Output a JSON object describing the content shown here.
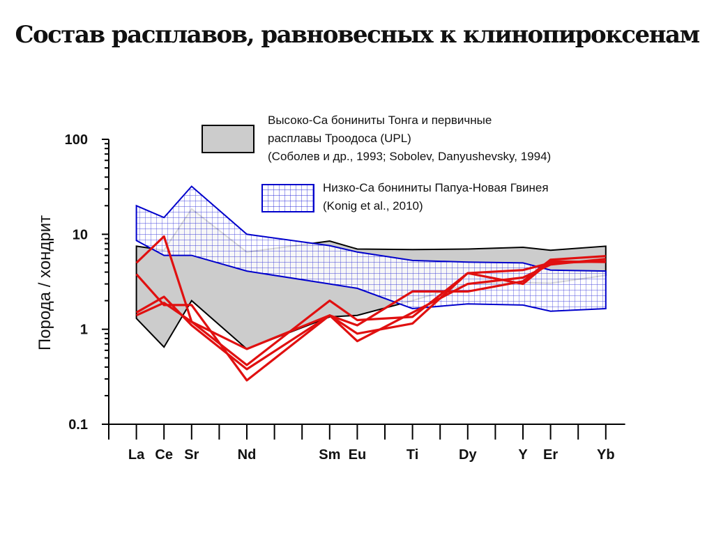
{
  "slide": {
    "title": "Состав расплавов, равновесных к клинопироксенам"
  },
  "chart_data": {
    "type": "line",
    "yscale": "log",
    "ylabel": "Порода / хондрит",
    "ylim": [
      0.1,
      100
    ],
    "yticks": [
      {
        "value": 0.1,
        "label": "0.1"
      },
      {
        "value": 1,
        "label": "1"
      },
      {
        "value": 10,
        "label": "10"
      },
      {
        "value": 100,
        "label": "100"
      }
    ],
    "x_positions_count": 19,
    "categories": [
      {
        "label": "La",
        "pos": 1
      },
      {
        "label": "Ce",
        "pos": 2
      },
      {
        "label": "Sr",
        "pos": 3
      },
      {
        "label": "Nd",
        "pos": 5
      },
      {
        "label": "Sm",
        "pos": 8
      },
      {
        "label": "Eu",
        "pos": 9
      },
      {
        "label": "Ti",
        "pos": 11
      },
      {
        "label": "Dy",
        "pos": 13
      },
      {
        "label": "Y",
        "pos": 15
      },
      {
        "label": "Er",
        "pos": 16
      },
      {
        "label": "Yb",
        "pos": 18
      }
    ],
    "legend": [
      {
        "text_lines": [
          "Высоко-Ca бониниты Тонга и первичные",
          "расплавы Троодоса (UPL)",
          "(Соболев и др., 1993; Sobolev, Danyushevsky, 1994)"
        ],
        "fill": "#cccccc",
        "stroke": "#000000"
      },
      {
        "text_lines": [
          "Низко-Ca бониниты Папуа-Новая Гвинея",
          "(Konig et al., 2010)"
        ],
        "fill": "hatched",
        "stroke": "#0000cc"
      }
    ],
    "bands": [
      {
        "name": "high_ca",
        "fill": "#cccccc",
        "stroke": "#000000",
        "upper": [
          [
            1,
            7.5
          ],
          [
            2,
            6.8
          ],
          [
            3,
            18.5
          ],
          [
            5,
            6.5
          ],
          [
            8,
            8.5
          ],
          [
            9,
            7.0
          ],
          [
            11,
            6.9
          ],
          [
            13,
            7.0
          ],
          [
            15,
            7.3
          ],
          [
            16,
            6.8
          ],
          [
            18,
            7.5
          ]
        ],
        "lower": [
          [
            1,
            1.3
          ],
          [
            2,
            0.65
          ],
          [
            3,
            2.0
          ],
          [
            5,
            0.62
          ],
          [
            8,
            1.35
          ],
          [
            9,
            1.4
          ],
          [
            11,
            2.0
          ],
          [
            13,
            3.0
          ],
          [
            15,
            3.1
          ],
          [
            16,
            3.05
          ],
          [
            18,
            3.7
          ]
        ]
      },
      {
        "name": "low_ca",
        "fill": "hatched",
        "stroke": "#0000cc",
        "upper": [
          [
            1,
            20
          ],
          [
            2,
            15
          ],
          [
            3,
            32
          ],
          [
            5,
            10
          ],
          [
            8,
            7.6
          ],
          [
            9,
            6.5
          ],
          [
            11,
            5.3
          ],
          [
            13,
            5.1
          ],
          [
            15,
            5.0
          ],
          [
            16,
            4.2
          ],
          [
            18,
            4.1
          ]
        ],
        "lower": [
          [
            1,
            8.6
          ],
          [
            2,
            6.0
          ],
          [
            3,
            6.0
          ],
          [
            5,
            4.1
          ],
          [
            8,
            3.0
          ],
          [
            9,
            2.7
          ],
          [
            11,
            1.65
          ],
          [
            13,
            1.85
          ],
          [
            15,
            1.8
          ],
          [
            16,
            1.55
          ],
          [
            18,
            1.65
          ]
        ]
      }
    ],
    "series": [
      {
        "color": "#e01010",
        "values": [
          [
            1,
            5.0
          ],
          [
            2,
            9.5
          ],
          [
            3,
            1.2
          ],
          [
            5,
            0.62
          ],
          [
            8,
            1.4
          ],
          [
            9,
            0.75
          ],
          [
            11,
            1.5
          ],
          [
            13,
            3.0
          ],
          [
            15,
            3.5
          ],
          [
            16,
            4.8
          ],
          [
            18,
            5.5
          ]
        ]
      },
      {
        "color": "#e01010",
        "values": [
          [
            1,
            3.8
          ],
          [
            2,
            1.8
          ],
          [
            3,
            1.8
          ],
          [
            5,
            0.29
          ],
          [
            8,
            1.4
          ],
          [
            9,
            0.9
          ],
          [
            11,
            1.15
          ],
          [
            13,
            3.9
          ],
          [
            15,
            3.0
          ],
          [
            16,
            5.2
          ],
          [
            18,
            5.1
          ]
        ]
      },
      {
        "color": "#e01010",
        "values": [
          [
            1,
            1.5
          ],
          [
            2,
            2.2
          ],
          [
            3,
            1.1
          ],
          [
            5,
            0.38
          ],
          [
            8,
            1.4
          ],
          [
            9,
            1.1
          ],
          [
            11,
            2.5
          ],
          [
            13,
            2.5
          ],
          [
            15,
            3.2
          ],
          [
            16,
            5.4
          ],
          [
            18,
            5.9
          ]
        ]
      },
      {
        "color": "#e01010",
        "values": [
          [
            1,
            1.4
          ],
          [
            2,
            1.9
          ],
          [
            3,
            1.2
          ],
          [
            5,
            0.42
          ],
          [
            8,
            2.0
          ],
          [
            9,
            1.25
          ],
          [
            11,
            1.35
          ],
          [
            13,
            3.9
          ],
          [
            15,
            4.2
          ],
          [
            16,
            5.0
          ],
          [
            18,
            5.2
          ]
        ]
      }
    ]
  }
}
